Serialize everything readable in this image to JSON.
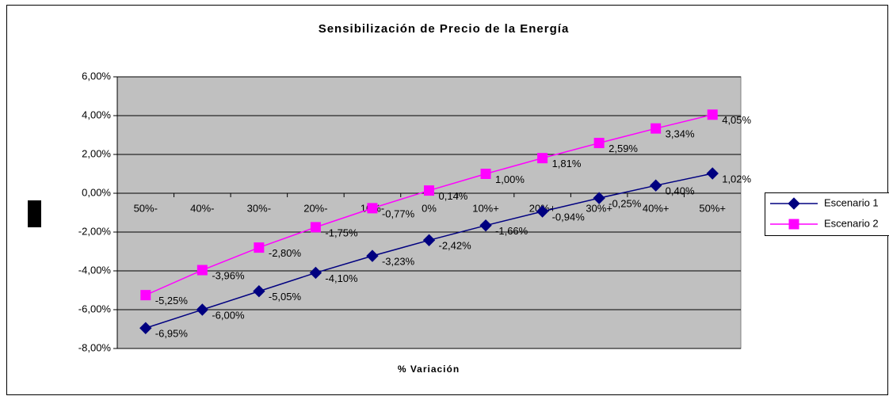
{
  "chart_data": {
    "type": "line",
    "title": "Sensibilización de Precio de la Energía",
    "x_label": "% Variación",
    "categories": [
      "50%-",
      "40%-",
      "30%-",
      "20%-",
      "10%-",
      "0%",
      "10%+",
      "20%+",
      "30%+",
      "40%+",
      "50%+"
    ],
    "series": [
      {
        "name": "Escenario 1",
        "color": "#000080",
        "marker": "diamond",
        "values": [
          -6.95,
          -6.0,
          -5.05,
          -4.1,
          -3.23,
          -2.42,
          -1.66,
          -0.94,
          -0.25,
          0.4,
          1.02
        ],
        "value_labels": [
          "-6,95%",
          "-6,00%",
          "-5,05%",
          "-4,10%",
          "-3,23%",
          "-2,42%",
          "-1,66%",
          "-0,94%",
          "-0,25%",
          "0,40%",
          "1,02%"
        ]
      },
      {
        "name": "Escenario 2",
        "color": "#ff00ff",
        "marker": "square",
        "values": [
          -5.25,
          -3.96,
          -2.8,
          -1.75,
          -0.77,
          0.14,
          1.0,
          1.81,
          2.59,
          3.34,
          4.05
        ],
        "value_labels": [
          "-5,25%",
          "-3,96%",
          "-2,80%",
          "-1,75%",
          "-0,77%",
          "0,14%",
          "1,00%",
          "1,81%",
          "2,59%",
          "3,34%",
          "4,05%"
        ]
      }
    ],
    "ylim": [
      -8,
      6
    ],
    "yticks": [
      {
        "value": -8,
        "label": "-8,00%"
      },
      {
        "value": -6,
        "label": "-6,00%"
      },
      {
        "value": -4,
        "label": "-4,00%"
      },
      {
        "value": -2,
        "label": "-2,00%"
      },
      {
        "value": 0,
        "label": "0,00%"
      },
      {
        "value": 2,
        "label": "2,00%"
      },
      {
        "value": 4,
        "label": "4,00%"
      },
      {
        "value": 6,
        "label": "6,00%"
      }
    ],
    "grid": true,
    "plot_background": "#c0c0c0",
    "legend": "right"
  }
}
